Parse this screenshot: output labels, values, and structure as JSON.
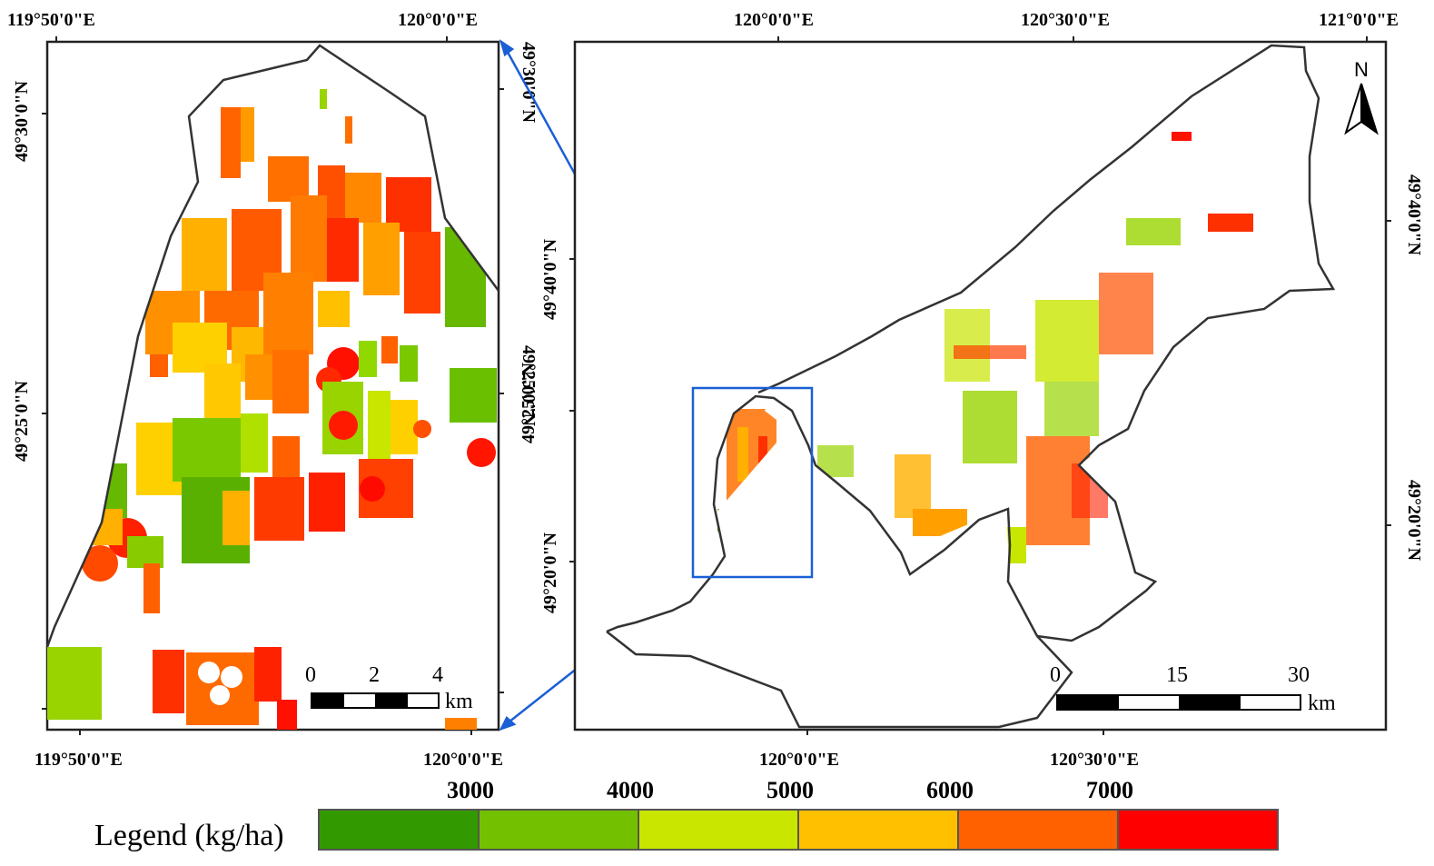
{
  "legend": {
    "title": "Legend (kg/ha)",
    "values": [
      "3000",
      "4000",
      "5000",
      "6000",
      "7000"
    ],
    "colors": [
      "#339900",
      "#73c000",
      "#c8e600",
      "#ffc000",
      "#ff6000",
      "#ff0000"
    ]
  },
  "inset_map": {
    "top_ticks": [
      "119°50'0\"E",
      "120°0'0\"E"
    ],
    "bottom_ticks": [
      "119°50'0\"E",
      "120°0'0\"E"
    ],
    "left_ticks": [
      "49°30'0\"N",
      "49°25'0\"N"
    ],
    "right_ticks": [
      "49°30'0\"N",
      "49°25'0\"N"
    ],
    "scale_values": [
      "0",
      "2",
      "4"
    ],
    "scale_unit": "km"
  },
  "main_map": {
    "top_ticks": [
      "120°0'0\"E",
      "120°30'0\"E",
      "121°0'0\"E"
    ],
    "bottom_ticks": [
      "120°0'0\"E",
      "120°30'0\"E"
    ],
    "left_ticks": [
      "49°40'0\"N",
      "49°25'0\"N",
      "49°20'0\"N"
    ],
    "right_ticks": [
      "49°40'0\"N",
      "49°20'0\"N"
    ],
    "scale_values": [
      "0",
      "15",
      "30"
    ],
    "scale_unit": "km",
    "north_label": "N"
  }
}
